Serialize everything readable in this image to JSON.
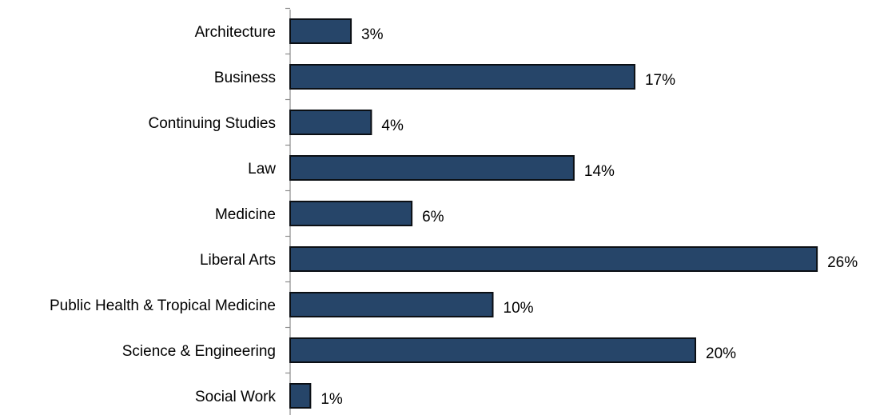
{
  "chart_data": {
    "type": "bar",
    "orientation": "horizontal",
    "categories": [
      "Architecture",
      "Business",
      "Continuing Studies",
      "Law",
      "Medicine",
      "Liberal Arts",
      "Public Health & Tropical Medicine",
      "Science & Engineering",
      "Social Work"
    ],
    "values": [
      3,
      17,
      4,
      14,
      6,
      26,
      10,
      20,
      1
    ],
    "value_labels": [
      "3%",
      "17%",
      "4%",
      "14%",
      "6%",
      "26%",
      "10%",
      "20%",
      "1%"
    ],
    "unit": "%",
    "xlim": [
      0,
      26
    ],
    "title": "",
    "xlabel": "",
    "ylabel": "",
    "grid": false,
    "legend": "none",
    "colors": {
      "bar_fill": "#264569",
      "bar_edge": "#0b0f14",
      "axis": "#8c8c8c",
      "text": "#000000"
    }
  }
}
